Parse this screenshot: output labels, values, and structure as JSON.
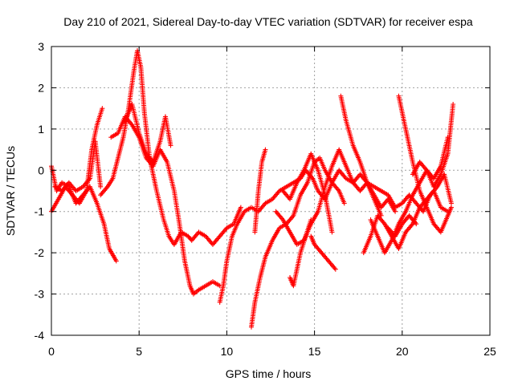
{
  "chart_data": {
    "type": "scatter",
    "title": "Day 210 of 2021, Sidereal Day-to-day VTEC variation (SDTVAR) for receiver espa",
    "xlabel": "GPS time / hours",
    "ylabel": "SDTVAR / TECUs",
    "xlim": [
      0,
      25
    ],
    "ylim": [
      -4,
      3
    ],
    "xticks": [
      "0",
      "5",
      "10",
      "15",
      "20",
      "25"
    ],
    "yticks": [
      "3",
      "2",
      "1",
      "0",
      "-1",
      "-2",
      "-3",
      "-4"
    ],
    "grid": true,
    "marker": "+",
    "color": "#ff0000",
    "series": [
      {
        "x": [
          0.0,
          0.3,
          0.6,
          1.0,
          1.4,
          1.8,
          2.2,
          2.6,
          3.0,
          3.3,
          3.7
        ],
        "y": [
          0.1,
          -0.5,
          -0.3,
          -0.4,
          -0.8,
          -0.6,
          -0.4,
          -0.8,
          -1.3,
          -1.9,
          -2.2
        ]
      },
      {
        "x": [
          0.0,
          0.4,
          0.8,
          1.2,
          1.6,
          2.0,
          2.3,
          2.6,
          2.9
        ],
        "y": [
          -1.0,
          -0.7,
          -0.4,
          -0.6,
          -0.8,
          -0.5,
          0.5,
          1.1,
          1.5
        ]
      },
      {
        "x": [
          0.2,
          0.6,
          1.0,
          1.4,
          1.8,
          2.2,
          2.5,
          2.8
        ],
        "y": [
          -0.4,
          -0.5,
          -0.3,
          -0.5,
          -0.4,
          -0.2,
          0.7,
          -0.4
        ]
      },
      {
        "x": [
          2.8,
          3.2,
          3.5,
          3.8,
          4.1,
          4.4,
          4.7,
          4.9,
          5.1,
          5.3,
          5.6,
          6.0,
          6.4,
          6.7,
          7.0,
          7.4,
          7.8,
          8.0,
          8.4,
          8.8,
          9.2,
          9.6,
          10.0,
          10.4,
          10.8
        ],
        "y": [
          -0.6,
          -0.4,
          -0.2,
          0.3,
          0.8,
          1.5,
          2.4,
          2.9,
          2.5,
          1.4,
          0.3,
          -0.5,
          -1.2,
          -1.6,
          -1.8,
          -1.5,
          -1.6,
          -1.7,
          -1.5,
          -1.6,
          -1.8,
          -1.6,
          -1.4,
          -1.3,
          -0.9
        ]
      },
      {
        "x": [
          3.4,
          3.8,
          4.2,
          4.6,
          5.0,
          5.4,
          5.8,
          6.2,
          6.6,
          7.0,
          7.3,
          7.6,
          7.9,
          8.1,
          8.4,
          8.8,
          9.2,
          9.6
        ],
        "y": [
          0.8,
          0.9,
          1.3,
          1.1,
          0.8,
          0.3,
          0.1,
          0.5,
          0.2,
          -0.5,
          -1.3,
          -2.2,
          -2.8,
          -3.0,
          -2.9,
          -2.8,
          -2.7,
          -2.8
        ]
      },
      {
        "x": [
          4.2,
          4.6,
          5.0,
          5.4,
          5.8,
          6.2,
          6.5,
          6.8
        ],
        "y": [
          1.2,
          1.6,
          0.9,
          0.4,
          0.2,
          0.7,
          1.3,
          0.6
        ]
      },
      {
        "x": [
          9.6,
          9.8,
          10.0,
          10.3,
          10.6,
          11.0,
          11.4,
          11.8,
          12.2,
          12.6,
          13.0,
          13.4,
          13.8,
          14.2,
          14.5,
          14.9,
          15.2,
          15.6,
          16.0,
          16.4,
          16.8,
          17.2,
          17.6,
          18.0,
          18.4,
          18.8,
          19.2,
          19.6,
          20.0,
          20.4,
          20.8,
          21.2,
          21.6,
          22.0,
          22.4,
          22.8
        ],
        "y": [
          -3.2,
          -2.8,
          -2.2,
          -1.6,
          -1.3,
          -1.0,
          -0.9,
          -1.0,
          -0.8,
          -0.7,
          -0.5,
          -0.4,
          -0.3,
          -0.2,
          0.0,
          -0.2,
          -0.5,
          -0.7,
          -0.3,
          0.0,
          -0.2,
          -0.3,
          -0.1,
          -0.3,
          -0.4,
          -0.5,
          -0.6,
          -0.9,
          -0.8,
          -0.6,
          -0.8,
          -1.0,
          -0.6,
          -0.4,
          -0.1,
          -0.8
        ]
      },
      {
        "x": [
          11.4,
          11.6,
          11.9,
          12.2,
          12.6,
          13.0,
          13.4,
          13.8,
          14.2,
          14.6,
          15.0,
          15.3,
          15.6,
          16.0,
          16.4,
          16.7
        ],
        "y": [
          -3.8,
          -3.2,
          -2.6,
          -2.1,
          -1.7,
          -1.4,
          -1.3,
          -1.1,
          -0.6,
          -0.3,
          0.2,
          0.3,
          0.0,
          -0.3,
          -0.5,
          -0.8
        ]
      },
      {
        "x": [
          11.6,
          11.8,
          12.0,
          12.2
        ],
        "y": [
          -1.5,
          -0.5,
          0.2,
          0.5
        ]
      },
      {
        "x": [
          12.8,
          13.2,
          13.6,
          14.0,
          14.4,
          14.8,
          15.2,
          15.6,
          16.0,
          16.4,
          16.8,
          17.2,
          17.6,
          18.0,
          18.4,
          18.8
        ],
        "y": [
          -1.0,
          -1.2,
          -1.5,
          -1.8,
          -1.7,
          -1.3,
          -1.0,
          -0.4,
          0.1,
          0.5,
          0.1,
          -0.3,
          -0.5,
          -0.3,
          -0.7,
          -1.1
        ]
      },
      {
        "x": [
          13.2,
          13.6,
          14.0,
          14.4,
          14.8,
          15.2,
          15.6,
          16.0
        ],
        "y": [
          -0.5,
          -0.7,
          -0.3,
          0.0,
          0.4,
          0.0,
          -0.6,
          -1.5
        ]
      },
      {
        "x": [
          13.6,
          13.8,
          14.0,
          14.2,
          14.5,
          14.8
        ],
        "y": [
          -2.6,
          -2.8,
          -2.4,
          -2.0,
          -1.6,
          -1.2
        ]
      },
      {
        "x": [
          14.8,
          15.0,
          15.4,
          15.8,
          16.2
        ],
        "y": [
          -1.6,
          -1.8,
          -2.0,
          -2.2,
          -2.4
        ]
      },
      {
        "x": [
          16.5,
          16.8,
          17.2,
          17.6,
          18.0,
          18.4,
          18.8,
          19.2,
          19.6
        ],
        "y": [
          1.8,
          1.2,
          0.6,
          0.2,
          -0.3,
          -0.6,
          -0.9,
          -0.7,
          -1.0
        ]
      },
      {
        "x": [
          17.8,
          18.2,
          18.6,
          19.0,
          19.4,
          19.8,
          20.2,
          20.6,
          21.0,
          21.4,
          21.8,
          22.2,
          22.6
        ],
        "y": [
          -2.0,
          -1.6,
          -1.1,
          -1.3,
          -1.6,
          -1.9,
          -1.5,
          -1.3,
          -0.9,
          -0.7,
          -0.5,
          -0.9,
          -1.0
        ]
      },
      {
        "x": [
          18.2,
          18.6,
          19.0,
          19.4,
          19.8,
          20.2,
          20.6,
          21.0,
          21.4,
          21.8,
          22.2,
          22.6,
          22.9
        ],
        "y": [
          -1.2,
          -1.6,
          -2.0,
          -1.7,
          -1.3,
          -1.0,
          -0.6,
          -0.3,
          0.0,
          -0.4,
          -0.1,
          0.4,
          1.6
        ]
      },
      {
        "x": [
          19.8,
          20.0,
          20.3,
          20.6,
          21.0,
          21.4,
          21.8,
          22.2,
          22.6,
          22.8
        ],
        "y": [
          1.8,
          1.4,
          0.8,
          0.2,
          -0.5,
          -0.9,
          -1.3,
          -1.5,
          -1.1,
          -0.9
        ]
      },
      {
        "x": [
          20.6,
          21.0,
          21.4,
          21.8,
          22.2,
          22.6
        ],
        "y": [
          -0.1,
          0.2,
          0.0,
          -0.2,
          0.1,
          0.8
        ]
      },
      {
        "x": [
          19.2,
          19.6,
          20.0,
          20.4,
          20.8
        ],
        "y": [
          -1.4,
          -1.6,
          -1.3,
          -1.1,
          -1.3
        ]
      }
    ]
  }
}
